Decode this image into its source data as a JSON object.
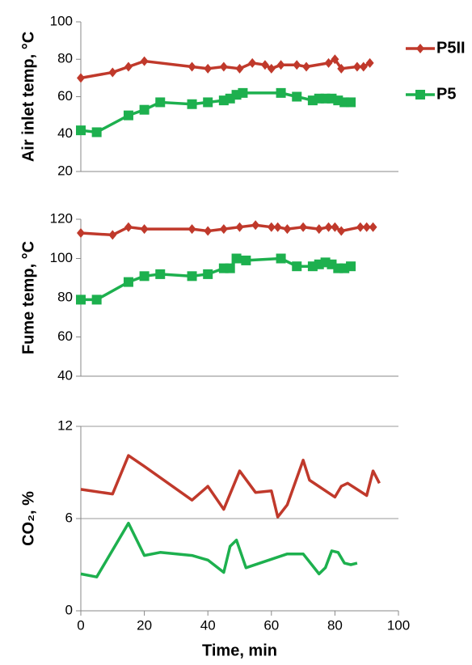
{
  "chart_data": [
    {
      "type": "line",
      "ylabel": "Air inlet temp, °C",
      "xlim": [
        0,
        100
      ],
      "ylim": [
        20,
        100
      ],
      "yticks": [
        20,
        40,
        60,
        80,
        100
      ],
      "grid": false,
      "series": [
        {
          "name": "P5II",
          "color": "#c0392b",
          "marker": "diamond",
          "x": [
            0,
            10,
            15,
            20,
            35,
            40,
            45,
            50,
            54,
            58,
            60,
            63,
            68,
            71,
            78,
            80,
            82,
            87,
            89,
            91
          ],
          "values": [
            70,
            73,
            76,
            79,
            76,
            75,
            76,
            75,
            78,
            77,
            75,
            77,
            77,
            76,
            78,
            80,
            75,
            76,
            76,
            78
          ]
        },
        {
          "name": "P5",
          "color": "#1db04e",
          "marker": "square",
          "x": [
            0,
            5,
            15,
            20,
            25,
            35,
            40,
            45,
            47,
            49,
            51,
            63,
            68,
            73,
            75,
            77,
            79,
            81,
            83,
            85
          ],
          "values": [
            42,
            41,
            50,
            53,
            57,
            56,
            57,
            58,
            59,
            61,
            62,
            62,
            60,
            58,
            59,
            59,
            59,
            58,
            57,
            57
          ]
        }
      ]
    },
    {
      "type": "line",
      "ylabel": "Fume temp, °C",
      "xlim": [
        0,
        100
      ],
      "ylim": [
        40,
        120
      ],
      "yticks": [
        40,
        60,
        80,
        100,
        120
      ],
      "grid": false,
      "series": [
        {
          "color": "#c0392b",
          "marker": "diamond",
          "x": [
            0,
            10,
            15,
            20,
            35,
            40,
            45,
            50,
            55,
            60,
            62,
            65,
            70,
            75,
            78,
            80,
            82,
            88,
            90,
            92
          ],
          "values": [
            113,
            112,
            116,
            115,
            115,
            114,
            115,
            116,
            117,
            116,
            116,
            115,
            116,
            115,
            116,
            116,
            114,
            116,
            116,
            116
          ]
        },
        {
          "color": "#1db04e",
          "marker": "square",
          "x": [
            0,
            5,
            15,
            20,
            25,
            35,
            40,
            45,
            47,
            49,
            52,
            63,
            68,
            73,
            75,
            77,
            79,
            81,
            83,
            85
          ],
          "values": [
            79,
            79,
            88,
            91,
            92,
            91,
            92,
            95,
            95,
            100,
            99,
            100,
            96,
            96,
            97,
            98,
            97,
            95,
            95,
            96
          ]
        }
      ]
    },
    {
      "type": "line",
      "ylabel": "CO₂, %",
      "xlabel": "Time, min",
      "xlim": [
        0,
        100
      ],
      "xticks": [
        0,
        20,
        40,
        60,
        80,
        100
      ],
      "ylim": [
        0,
        12
      ],
      "yticks": [
        0,
        6,
        12
      ],
      "grid": true,
      "series": [
        {
          "color": "#c0392b",
          "x": [
            0,
            10,
            15,
            20,
            35,
            40,
            45,
            50,
            55,
            60,
            62,
            65,
            70,
            72,
            80,
            82,
            84,
            90,
            92,
            94
          ],
          "values": [
            7.9,
            7.6,
            10.1,
            9.4,
            7.2,
            8.1,
            6.6,
            9.1,
            7.7,
            7.8,
            6.1,
            6.9,
            9.8,
            8.5,
            7.4,
            8.1,
            8.3,
            7.5,
            9.1,
            8.3
          ]
        },
        {
          "color": "#1db04e",
          "x": [
            0,
            5,
            15,
            20,
            25,
            35,
            40,
            45,
            47,
            49,
            52,
            65,
            70,
            75,
            77,
            79,
            81,
            83,
            85,
            87
          ],
          "values": [
            2.4,
            2.2,
            5.7,
            3.6,
            3.8,
            3.6,
            3.3,
            2.5,
            4.2,
            4.6,
            2.8,
            3.7,
            3.7,
            2.4,
            2.8,
            3.9,
            3.8,
            3.1,
            3.0,
            3.1
          ]
        }
      ]
    }
  ]
}
